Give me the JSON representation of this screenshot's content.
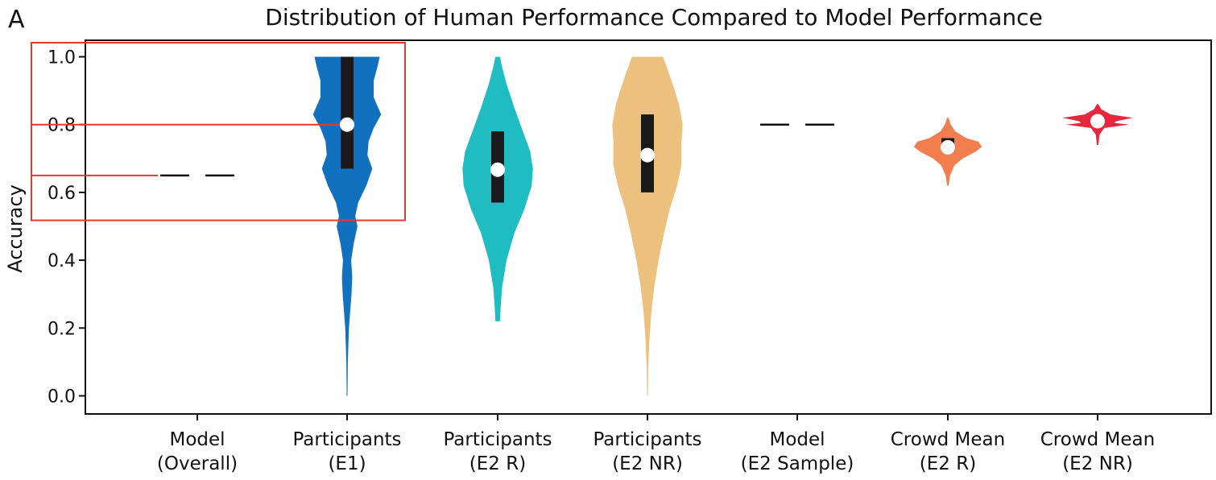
{
  "chart_data": {
    "type": "violin",
    "panel_label": "A",
    "title": "Distribution of Human Performance Compared to Model Performance",
    "ylabel": "Accuracy",
    "xlabel": "",
    "ylim": [
      0.0,
      1.0
    ],
    "yticks": [
      "0.0",
      "0.2",
      "0.4",
      "0.6",
      "0.8",
      "1.0"
    ],
    "grid": false,
    "categories": [
      {
        "lines": [
          "Model",
          "(Overall)"
        ]
      },
      {
        "lines": [
          "Participants",
          "(E1)"
        ]
      },
      {
        "lines": [
          "Participants",
          "(E2 R)"
        ]
      },
      {
        "lines": [
          "Participants",
          "(E2 NR)"
        ]
      },
      {
        "lines": [
          "Model",
          "(E2 Sample)"
        ]
      },
      {
        "lines": [
          "Crowd Mean",
          "(E2 R)"
        ]
      },
      {
        "lines": [
          "Crowd Mean",
          "(E2 NR)"
        ]
      }
    ],
    "series": [
      {
        "kind": "constant",
        "value": 0.65,
        "color": "#111111"
      },
      {
        "kind": "violin",
        "color": "#1271bf",
        "median": 0.8,
        "q1": 0.67,
        "q3": 1.0,
        "min": 0.0,
        "max": 1.0,
        "density": [
          [
            0.0,
            0.01
          ],
          [
            0.1,
            0.02
          ],
          [
            0.2,
            0.05
          ],
          [
            0.3,
            0.12
          ],
          [
            0.35,
            0.14
          ],
          [
            0.4,
            0.11
          ],
          [
            0.45,
            0.18
          ],
          [
            0.5,
            0.28
          ],
          [
            0.53,
            0.22
          ],
          [
            0.57,
            0.3
          ],
          [
            0.62,
            0.52
          ],
          [
            0.67,
            0.68
          ],
          [
            0.71,
            0.55
          ],
          [
            0.75,
            0.58
          ],
          [
            0.79,
            0.72
          ],
          [
            0.83,
            0.92
          ],
          [
            0.88,
            0.72
          ],
          [
            0.93,
            0.72
          ],
          [
            0.97,
            0.82
          ],
          [
            1.0,
            0.88
          ]
        ]
      },
      {
        "kind": "violin",
        "color": "#1fbdc2",
        "median": 0.667,
        "q1": 0.57,
        "q3": 0.78,
        "min": 0.22,
        "max": 1.0,
        "density": [
          [
            0.22,
            0.06
          ],
          [
            0.26,
            0.08
          ],
          [
            0.32,
            0.12
          ],
          [
            0.4,
            0.24
          ],
          [
            0.48,
            0.45
          ],
          [
            0.55,
            0.72
          ],
          [
            0.62,
            0.92
          ],
          [
            0.67,
            0.95
          ],
          [
            0.72,
            0.88
          ],
          [
            0.78,
            0.68
          ],
          [
            0.85,
            0.45
          ],
          [
            0.92,
            0.24
          ],
          [
            0.97,
            0.12
          ],
          [
            1.0,
            0.06
          ]
        ]
      },
      {
        "kind": "violin",
        "color": "#ecc07d",
        "median": 0.71,
        "q1": 0.6,
        "q3": 0.83,
        "min": 0.0,
        "max": 1.0,
        "density": [
          [
            0.0,
            0.01
          ],
          [
            0.08,
            0.02
          ],
          [
            0.16,
            0.05
          ],
          [
            0.24,
            0.1
          ],
          [
            0.32,
            0.18
          ],
          [
            0.4,
            0.3
          ],
          [
            0.48,
            0.45
          ],
          [
            0.55,
            0.6
          ],
          [
            0.62,
            0.8
          ],
          [
            0.68,
            0.92
          ],
          [
            0.75,
            0.92
          ],
          [
            0.8,
            0.95
          ],
          [
            0.86,
            0.85
          ],
          [
            0.92,
            0.68
          ],
          [
            0.97,
            0.52
          ],
          [
            1.0,
            0.42
          ]
        ]
      },
      {
        "kind": "constant",
        "value": 0.8,
        "color": "#111111"
      },
      {
        "kind": "violin",
        "color": "#f27d4f",
        "median": 0.733,
        "q1": 0.73,
        "q3": 0.76,
        "min": 0.62,
        "max": 0.82,
        "density": [
          [
            0.62,
            0.02
          ],
          [
            0.65,
            0.06
          ],
          [
            0.68,
            0.18
          ],
          [
            0.7,
            0.4
          ],
          [
            0.72,
            0.75
          ],
          [
            0.735,
            0.92
          ],
          [
            0.75,
            0.82
          ],
          [
            0.76,
            0.5
          ],
          [
            0.78,
            0.2
          ],
          [
            0.8,
            0.08
          ],
          [
            0.82,
            0.02
          ]
        ]
      },
      {
        "kind": "violin",
        "color": "#e8263c",
        "median": 0.81,
        "q1": 0.8,
        "q3": 0.82,
        "min": 0.74,
        "max": 0.86,
        "density": [
          [
            0.74,
            0.02
          ],
          [
            0.77,
            0.05
          ],
          [
            0.79,
            0.18
          ],
          [
            0.8,
            0.85
          ],
          [
            0.805,
            0.45
          ],
          [
            0.81,
            0.5
          ],
          [
            0.82,
            0.95
          ],
          [
            0.83,
            0.35
          ],
          [
            0.845,
            0.1
          ],
          [
            0.86,
            0.02
          ]
        ]
      }
    ],
    "annotations": [
      {
        "type": "zoom-box",
        "color": "#e53935",
        "y_range": [
          0.52,
          1.0
        ]
      },
      {
        "type": "guide-line",
        "color": "#e53935",
        "y": 0.8
      },
      {
        "type": "guide-line",
        "color": "#e53935",
        "y": 0.65
      }
    ]
  }
}
